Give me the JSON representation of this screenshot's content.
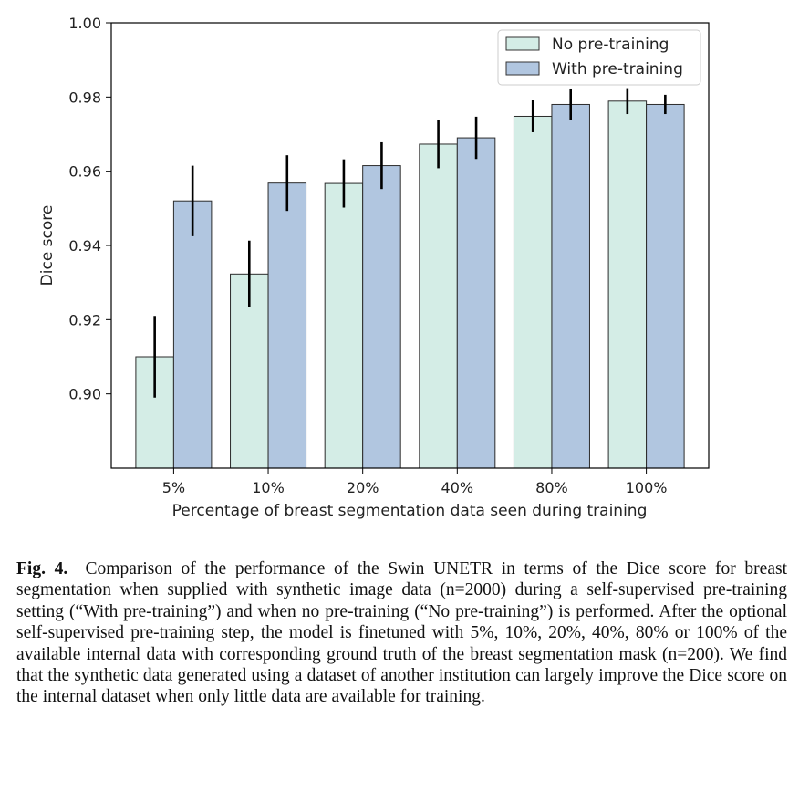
{
  "chart_data": {
    "type": "bar",
    "categories": [
      "5%",
      "10%",
      "20%",
      "40%",
      "80%",
      "100%"
    ],
    "series": [
      {
        "name": "No pre-training",
        "color": "#d4ede6",
        "values": [
          0.91,
          0.9323,
          0.9567,
          0.9673,
          0.9748,
          0.9789
        ],
        "error": [
          0.011,
          0.009,
          0.0065,
          0.0065,
          0.0043,
          0.0035
        ]
      },
      {
        "name": "With pre-training",
        "color": "#b1c6e0",
        "values": [
          0.952,
          0.9568,
          0.9615,
          0.969,
          0.978,
          0.978
        ],
        "error": [
          0.0095,
          0.0075,
          0.0063,
          0.0057,
          0.0043,
          0.0026
        ]
      }
    ],
    "title": "",
    "xlabel": "Percentage of breast segmentation data seen during training",
    "ylabel": "Dice score",
    "ylim": [
      0.88,
      1.0
    ],
    "yticks": [
      "0.90",
      "0.92",
      "0.94",
      "0.96",
      "0.98",
      "1.00"
    ],
    "grid": false,
    "legend_position": "top-right"
  },
  "caption": {
    "label": "Fig. 4.",
    "text": "Comparison of the performance of the Swin UNETR in terms of the Dice score for breast segmentation when supplied with synthetic image data (n=2000) during a self-supervised pre-training setting (“With pre-training”) and when no pre-training (“No pre-training”) is performed. After the optional self-supervised pre-training step, the model is finetuned with 5%, 10%, 20%, 40%, 80% or 100% of the available internal data with corresponding ground truth of the breast segmentation mask (n=200). We find that the synthetic data generated using a dataset of another institution can largely improve the Dice score on the internal dataset when only little data are available for training."
  }
}
